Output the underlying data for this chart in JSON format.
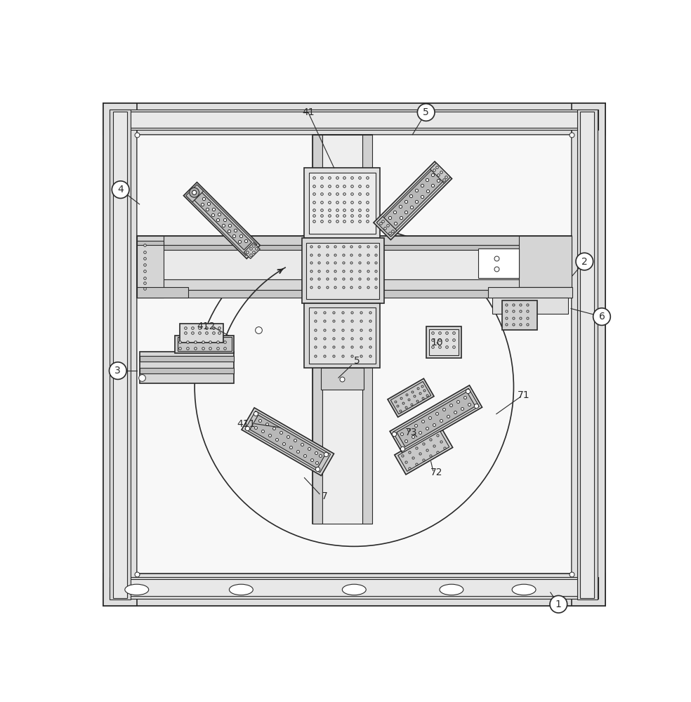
{
  "bg_color": "#ffffff",
  "lc": "#2a2a2a",
  "fc_frame": "#f0f0f0",
  "fc_bar": "#e2e2e2",
  "fc_rail": "#ebebeb",
  "fc_part": "#d8d8d8",
  "fc_part2": "#c8c8c8",
  "fc_part3": "#b8b8b8",
  "fc_white": "#ffffff",
  "fc_inner": "#e8e8e8"
}
